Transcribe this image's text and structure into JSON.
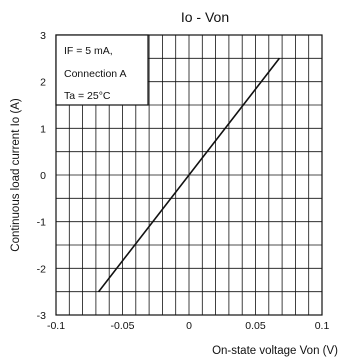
{
  "chart_data": {
    "type": "line",
    "title": "Io - Von",
    "xlabel": "On-state voltage Von (V)",
    "ylabel": "Continuous load current Io (A)",
    "xlim": [
      -0.1,
      0.1
    ],
    "ylim": [
      -3,
      3
    ],
    "x_ticks": [
      -0.1,
      -0.05,
      0,
      0.05,
      0.1
    ],
    "x_tick_labels": [
      "-0.1",
      "-0.05",
      "0",
      "0.05",
      "0.1"
    ],
    "y_ticks": [
      -3,
      -2,
      -1,
      0,
      1,
      2,
      3
    ],
    "y_tick_labels": [
      "-3",
      "-2",
      "-1",
      "0",
      "1",
      "2",
      "3"
    ],
    "grid": true,
    "series": [
      {
        "x": [
          -0.068,
          0.068
        ],
        "y": [
          -2.5,
          2.5
        ]
      }
    ],
    "legend_lines": [
      "IF = 5 mA,",
      "Connection A",
      "Ta = 25°C"
    ],
    "legend_position": "top-left"
  }
}
